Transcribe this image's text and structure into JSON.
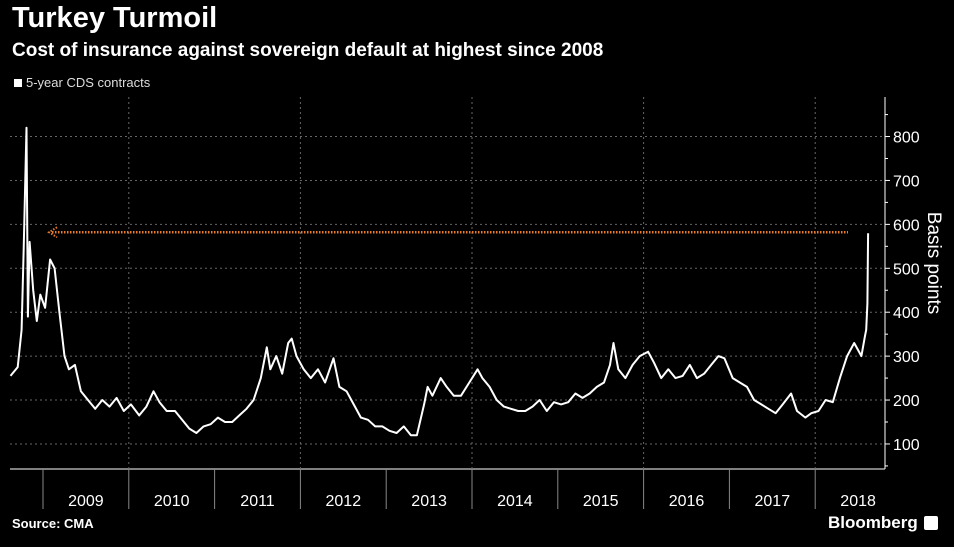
{
  "header": {
    "title": "Turkey Turmoil",
    "subtitle": "Cost of insurance against sovereign default at highest since 2008"
  },
  "footer": {
    "source": "Source: CMA",
    "brand": "Bloomberg"
  },
  "colors": {
    "background": "#000000",
    "series": "#ffffff",
    "annotation": "#e8792f"
  },
  "chart_data": {
    "type": "line",
    "title": "Turkey Turmoil",
    "subtitle": "Cost of insurance against sovereign default at highest since 2008",
    "ylabel": "Basis points",
    "ylim": [
      43,
      890
    ],
    "y_axis_side": "right",
    "yticks": [
      100,
      200,
      300,
      400,
      500,
      600,
      700,
      800
    ],
    "xticks": [
      "2009",
      "2010",
      "2011",
      "2012",
      "2013",
      "2014",
      "2015",
      "2016",
      "2017",
      "2018"
    ],
    "grid": true,
    "legend": "top-left",
    "annotation": {
      "type": "dotted-arrow",
      "value": 582,
      "description_color": "#e8792f"
    },
    "series": [
      {
        "name": "5-year CDS contracts",
        "points": [
          [
            "2008-08-15",
            255
          ],
          [
            "2008-09-15",
            275
          ],
          [
            "2008-10-01",
            360
          ],
          [
            "2008-10-10",
            545
          ],
          [
            "2008-10-22",
            820
          ],
          [
            "2008-10-28",
            390
          ],
          [
            "2008-11-05",
            560
          ],
          [
            "2008-11-20",
            450
          ],
          [
            "2008-12-05",
            380
          ],
          [
            "2008-12-20",
            440
          ],
          [
            "2009-01-10",
            410
          ],
          [
            "2009-02-01",
            520
          ],
          [
            "2009-02-20",
            500
          ],
          [
            "2009-03-10",
            400
          ],
          [
            "2009-04-01",
            300
          ],
          [
            "2009-04-20",
            270
          ],
          [
            "2009-05-15",
            280
          ],
          [
            "2009-06-10",
            220
          ],
          [
            "2009-07-10",
            200
          ],
          [
            "2009-08-10",
            180
          ],
          [
            "2009-09-10",
            200
          ],
          [
            "2009-10-10",
            185
          ],
          [
            "2009-11-10",
            205
          ],
          [
            "2009-12-10",
            175
          ],
          [
            "2010-01-10",
            190
          ],
          [
            "2010-02-15",
            165
          ],
          [
            "2010-03-15",
            185
          ],
          [
            "2010-04-15",
            220
          ],
          [
            "2010-05-10",
            195
          ],
          [
            "2010-06-10",
            175
          ],
          [
            "2010-07-15",
            175
          ],
          [
            "2010-08-15",
            155
          ],
          [
            "2010-09-15",
            135
          ],
          [
            "2010-10-15",
            125
          ],
          [
            "2010-11-15",
            140
          ],
          [
            "2010-12-15",
            145
          ],
          [
            "2011-01-15",
            160
          ],
          [
            "2011-02-15",
            150
          ],
          [
            "2011-03-15",
            150
          ],
          [
            "2011-04-15",
            165
          ],
          [
            "2011-05-15",
            180
          ],
          [
            "2011-06-15",
            200
          ],
          [
            "2011-07-15",
            250
          ],
          [
            "2011-08-10",
            320
          ],
          [
            "2011-08-25",
            270
          ],
          [
            "2011-09-20",
            300
          ],
          [
            "2011-10-15",
            260
          ],
          [
            "2011-11-10",
            330
          ],
          [
            "2011-11-25",
            340
          ],
          [
            "2011-12-15",
            300
          ],
          [
            "2012-01-15",
            270
          ],
          [
            "2012-02-15",
            250
          ],
          [
            "2012-03-15",
            270
          ],
          [
            "2012-04-15",
            240
          ],
          [
            "2012-05-20",
            295
          ],
          [
            "2012-06-15",
            230
          ],
          [
            "2012-07-15",
            220
          ],
          [
            "2012-08-15",
            190
          ],
          [
            "2012-09-15",
            160
          ],
          [
            "2012-10-15",
            155
          ],
          [
            "2012-11-15",
            140
          ],
          [
            "2012-12-15",
            140
          ],
          [
            "2013-01-15",
            130
          ],
          [
            "2013-02-15",
            125
          ],
          [
            "2013-03-15",
            140
          ],
          [
            "2013-04-15",
            120
          ],
          [
            "2013-05-10",
            120
          ],
          [
            "2013-06-10",
            190
          ],
          [
            "2013-06-25",
            230
          ],
          [
            "2013-07-15",
            210
          ],
          [
            "2013-08-20",
            250
          ],
          [
            "2013-09-15",
            230
          ],
          [
            "2013-10-15",
            210
          ],
          [
            "2013-11-15",
            210
          ],
          [
            "2013-12-20",
            240
          ],
          [
            "2014-01-25",
            270
          ],
          [
            "2014-02-15",
            250
          ],
          [
            "2014-03-15",
            230
          ],
          [
            "2014-04-15",
            200
          ],
          [
            "2014-05-15",
            185
          ],
          [
            "2014-06-15",
            180
          ],
          [
            "2014-07-15",
            175
          ],
          [
            "2014-08-15",
            175
          ],
          [
            "2014-09-15",
            185
          ],
          [
            "2014-10-15",
            200
          ],
          [
            "2014-11-15",
            175
          ],
          [
            "2014-12-15",
            195
          ],
          [
            "2015-01-15",
            190
          ],
          [
            "2015-02-15",
            195
          ],
          [
            "2015-03-15",
            215
          ],
          [
            "2015-04-15",
            205
          ],
          [
            "2015-05-15",
            215
          ],
          [
            "2015-06-15",
            230
          ],
          [
            "2015-07-15",
            240
          ],
          [
            "2015-08-10",
            280
          ],
          [
            "2015-08-25",
            330
          ],
          [
            "2015-09-15",
            270
          ],
          [
            "2015-10-15",
            250
          ],
          [
            "2015-11-15",
            280
          ],
          [
            "2015-12-15",
            300
          ],
          [
            "2016-01-20",
            310
          ],
          [
            "2016-02-15",
            285
          ],
          [
            "2016-03-15",
            250
          ],
          [
            "2016-04-15",
            270
          ],
          [
            "2016-05-15",
            250
          ],
          [
            "2016-06-15",
            255
          ],
          [
            "2016-07-15",
            280
          ],
          [
            "2016-08-15",
            250
          ],
          [
            "2016-09-15",
            260
          ],
          [
            "2016-10-15",
            280
          ],
          [
            "2016-11-15",
            300
          ],
          [
            "2016-12-10",
            295
          ],
          [
            "2017-01-15",
            250
          ],
          [
            "2017-02-15",
            240
          ],
          [
            "2017-03-15",
            230
          ],
          [
            "2017-04-15",
            200
          ],
          [
            "2017-05-15",
            190
          ],
          [
            "2017-06-15",
            180
          ],
          [
            "2017-07-15",
            170
          ],
          [
            "2017-08-15",
            190
          ],
          [
            "2017-09-20",
            215
          ],
          [
            "2017-10-15",
            175
          ],
          [
            "2017-11-20",
            160
          ],
          [
            "2017-12-15",
            170
          ],
          [
            "2018-01-15",
            175
          ],
          [
            "2018-02-15",
            200
          ],
          [
            "2018-03-15",
            195
          ],
          [
            "2018-04-15",
            250
          ],
          [
            "2018-05-15",
            300
          ],
          [
            "2018-06-15",
            330
          ],
          [
            "2018-07-15",
            300
          ],
          [
            "2018-07-30",
            345
          ],
          [
            "2018-08-05",
            360
          ],
          [
            "2018-08-10",
            420
          ],
          [
            "2018-08-13",
            580
          ]
        ]
      }
    ]
  }
}
